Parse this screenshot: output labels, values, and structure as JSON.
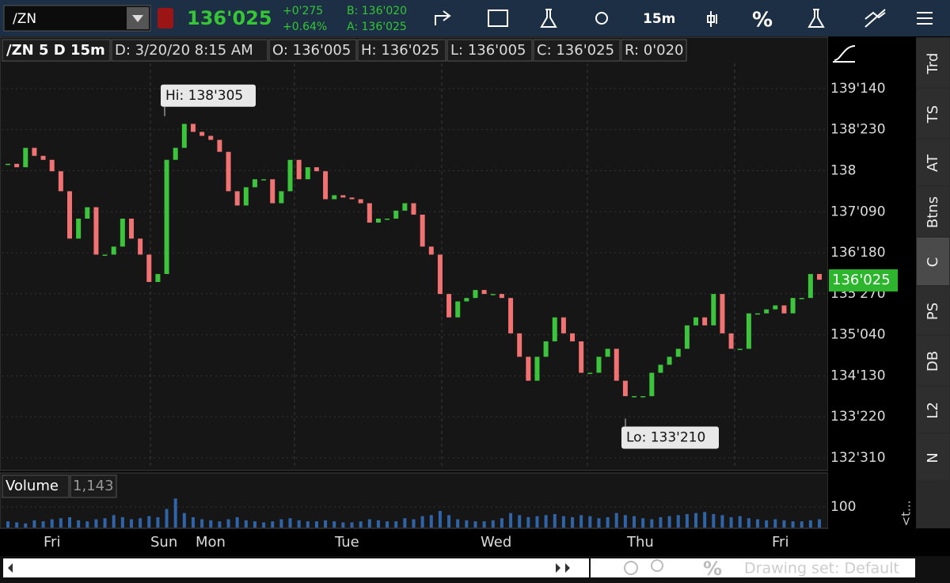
{
  "toolbar": {
    "symbol": "/ZN",
    "last": "136'025",
    "change": "+0'275",
    "change_pct": "+0.64%",
    "bid": "B: 136'020",
    "ask": "A: 136'025",
    "timeframe": "15m",
    "percent": "%"
  },
  "chart_header": {
    "title": "/ZN 5 D 15m",
    "date": "D: 3/20/20 8:15 AM",
    "open": "O: 136'005",
    "high": "H: 136'025",
    "low": "L: 136'005",
    "close": "C: 136'025",
    "range": "R: 0'020"
  },
  "chart_data": {
    "type": "candlestick",
    "closes": [
      138.12,
      138.06,
      138.4,
      138.26,
      138.19,
      137.99,
      137.64,
      136.81,
      137.16,
      137.36,
      136.53,
      136.53,
      136.67,
      137.16,
      136.81,
      136.53,
      136.05,
      136.19,
      138.19,
      138.4,
      138.82,
      138.68,
      138.61,
      138.54,
      138.33,
      137.64,
      137.39,
      137.71,
      137.85,
      137.85,
      137.43,
      137.64,
      138.19,
      137.85,
      138.06,
      137.99,
      137.5,
      137.57,
      137.53,
      137.5,
      137.43,
      137.09,
      137.16,
      137.16,
      137.3,
      137.43,
      137.23,
      136.67,
      136.53,
      135.84,
      135.43,
      135.71,
      135.77,
      135.91,
      135.84,
      135.84,
      135.77,
      135.15,
      134.74,
      134.32,
      134.74,
      135.01,
      135.43,
      135.15,
      135.01,
      134.46,
      134.46,
      134.74,
      134.88,
      134.32,
      134.05,
      134.05,
      134.05,
      134.46,
      134.6,
      134.74,
      134.88,
      135.29,
      135.43,
      135.29,
      135.84,
      135.15,
      134.88,
      134.88,
      135.5,
      135.5,
      135.57,
      135.64,
      135.5,
      135.77,
      135.77,
      136.19,
      136.09
    ],
    "up_color": "#3cc43c",
    "down_color": "#f07272",
    "ylim": [
      132.775,
      139.88
    ],
    "yticks": [
      {
        "value": 132.96875,
        "label": "132'310"
      },
      {
        "value": 133.6875,
        "label": "133'220"
      },
      {
        "value": 134.40625,
        "label": "134'130"
      },
      {
        "value": 135.125,
        "label": "135'040"
      },
      {
        "value": 135.84375,
        "label": "135'270"
      },
      {
        "value": 136.5625,
        "label": "136'180"
      },
      {
        "value": 137.28125,
        "label": "137'090"
      },
      138,
      {
        "value": 138.71875,
        "label": "138'230"
      },
      {
        "value": 139.4375,
        "label": "139'140"
      }
    ],
    "grid": true,
    "last": {
      "value": 136.078125,
      "label": "136'025"
    },
    "annotations": [
      {
        "value": 138.953125,
        "label": "Hi: 138'305"
      },
      {
        "value": 133.65625,
        "label": "Lo: 133'210"
      }
    ],
    "day_labels": [
      "Fri",
      "Sun",
      "Mon",
      "Tue",
      "Wed",
      "Thu",
      "Fri"
    ],
    "volume": {
      "label": "Volume",
      "current": "1,143",
      "color": "#2f64a8",
      "ylim": [
        0,
        260
      ],
      "yticks": [
        100
      ],
      "values": [
        30,
        25,
        20,
        35,
        30,
        40,
        45,
        50,
        35,
        30,
        40,
        45,
        60,
        50,
        40,
        45,
        55,
        50,
        90,
        140,
        70,
        50,
        40,
        35,
        30,
        40,
        50,
        35,
        30,
        25,
        30,
        40,
        45,
        35,
        30,
        30,
        35,
        30,
        25,
        25,
        30,
        40,
        35,
        30,
        30,
        45,
        40,
        55,
        60,
        80,
        60,
        40,
        35,
        30,
        30,
        35,
        45,
        70,
        60,
        50,
        55,
        60,
        65,
        55,
        50,
        60,
        55,
        45,
        50,
        70,
        60,
        55,
        45,
        40,
        50,
        55,
        60,
        65,
        70,
        75,
        65,
        60,
        50,
        55,
        45,
        40,
        35,
        40,
        35,
        30,
        30,
        35,
        40
      ]
    }
  },
  "side_tabs": [
    "Trd",
    "TS",
    "AT",
    "Btns",
    "C",
    "PS",
    "DB",
    "L2",
    "N"
  ],
  "side_more": "<t...",
  "footer": {
    "percent": "%",
    "drawing_set": "Drawing set: Default"
  }
}
